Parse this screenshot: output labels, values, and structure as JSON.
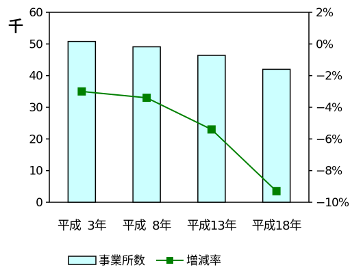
{
  "chart_data": {
    "type": "bar+line",
    "categories": [
      "平成  3年",
      "平成  8年",
      "平成13年",
      "平成18年"
    ],
    "y_left": {
      "unit_label": "千",
      "min": 0,
      "max": 60,
      "step": 10,
      "ticks": [
        "0",
        "10",
        "20",
        "30",
        "40",
        "50",
        "60"
      ]
    },
    "y_right": {
      "min": -10,
      "max": 2,
      "step": 2,
      "ticks": [
        "-10%",
        "-8%",
        "-6%",
        "-4%",
        "-2%",
        "0%",
        "2%"
      ]
    },
    "series": [
      {
        "name": "事業所数",
        "type": "bar",
        "axis": "left",
        "values": [
          50.8,
          49.1,
          46.4,
          42.0
        ],
        "color": "#ccffff",
        "stroke": "#000000"
      },
      {
        "name": "増減率",
        "type": "line",
        "axis": "right",
        "values": [
          -3.0,
          -3.4,
          -5.4,
          -9.3
        ],
        "color": "#008000",
        "marker": "square"
      }
    ],
    "grid": false,
    "legend_position": "bottom"
  }
}
